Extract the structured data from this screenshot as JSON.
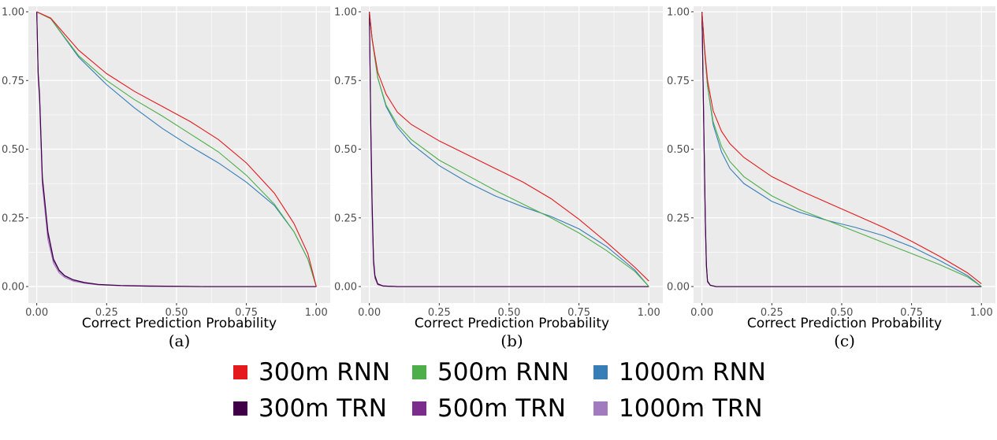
{
  "chart_data": [
    {
      "type": "line",
      "caption": "(a)",
      "xlabel": "Correct Prediction Probability",
      "ylabel": "",
      "xlim": [
        -0.03,
        1.05
      ],
      "ylim": [
        -0.06,
        1.02
      ],
      "xticks": [
        "0.00",
        "0.25",
        "0.50",
        "0.75",
        "1.00"
      ],
      "yticks": [
        "0.00",
        "0.25",
        "0.50",
        "0.75",
        "1.00"
      ],
      "grid": true,
      "series": [
        {
          "name": "300m RNN",
          "x": [
            0,
            0.05,
            0.15,
            0.25,
            0.35,
            0.45,
            0.55,
            0.65,
            0.75,
            0.85,
            0.92,
            0.97,
            1.0
          ],
          "y": [
            1.0,
            0.977,
            0.86,
            0.775,
            0.71,
            0.655,
            0.6,
            0.535,
            0.45,
            0.34,
            0.23,
            0.12,
            0.0
          ]
        },
        {
          "name": "500m RNN",
          "x": [
            0,
            0.05,
            0.15,
            0.25,
            0.35,
            0.45,
            0.55,
            0.65,
            0.75,
            0.85,
            0.92,
            0.97,
            1.0
          ],
          "y": [
            1.0,
            0.975,
            0.84,
            0.75,
            0.68,
            0.62,
            0.555,
            0.49,
            0.405,
            0.3,
            0.2,
            0.1,
            0.0
          ]
        },
        {
          "name": "1000m RNN",
          "x": [
            0,
            0.05,
            0.15,
            0.25,
            0.35,
            0.45,
            0.55,
            0.65,
            0.75,
            0.85,
            0.92,
            0.97,
            1.0
          ],
          "y": [
            1.0,
            0.975,
            0.835,
            0.735,
            0.65,
            0.575,
            0.51,
            0.45,
            0.38,
            0.295,
            0.2,
            0.1,
            0.0
          ]
        },
        {
          "name": "300m TRN",
          "x": [
            0,
            0.005,
            0.01,
            0.02,
            0.04,
            0.06,
            0.08,
            0.1,
            0.13,
            0.17,
            0.22,
            0.3,
            0.4,
            0.6,
            1.0
          ],
          "y": [
            1.0,
            0.78,
            0.7,
            0.4,
            0.2,
            0.1,
            0.06,
            0.04,
            0.025,
            0.015,
            0.008,
            0.004,
            0.002,
            0.0,
            0.0
          ]
        },
        {
          "name": "500m TRN",
          "x": [
            0,
            0.005,
            0.01,
            0.02,
            0.04,
            0.06,
            0.08,
            0.1,
            0.13,
            0.17,
            0.22,
            0.3,
            0.4,
            0.6,
            1.0
          ],
          "y": [
            1.0,
            0.77,
            0.69,
            0.39,
            0.19,
            0.095,
            0.057,
            0.038,
            0.024,
            0.014,
            0.007,
            0.003,
            0.001,
            0.0,
            0.0
          ]
        },
        {
          "name": "1000m TRN",
          "x": [
            0,
            0.005,
            0.01,
            0.02,
            0.04,
            0.06,
            0.08,
            0.1,
            0.13,
            0.17,
            0.22,
            0.3,
            0.4,
            0.6,
            1.0
          ],
          "y": [
            1.0,
            0.76,
            0.68,
            0.37,
            0.17,
            0.085,
            0.05,
            0.033,
            0.02,
            0.012,
            0.006,
            0.003,
            0.001,
            0.0,
            0.0
          ]
        }
      ]
    },
    {
      "type": "line",
      "caption": "(b)",
      "xlabel": "Correct Prediction Probability",
      "ylabel": "",
      "xlim": [
        -0.03,
        1.05
      ],
      "ylim": [
        -0.06,
        1.02
      ],
      "xticks": [
        "0.00",
        "0.25",
        "0.50",
        "0.75",
        "1.00"
      ],
      "yticks": [
        "0.00",
        "0.25",
        "0.50",
        "0.75",
        "1.00"
      ],
      "grid": true,
      "series": [
        {
          "name": "300m RNN",
          "x": [
            0,
            0.01,
            0.03,
            0.06,
            0.1,
            0.15,
            0.25,
            0.35,
            0.45,
            0.55,
            0.65,
            0.75,
            0.85,
            0.95,
            1.0
          ],
          "y": [
            1.0,
            0.9,
            0.78,
            0.7,
            0.635,
            0.59,
            0.53,
            0.48,
            0.43,
            0.38,
            0.32,
            0.245,
            0.16,
            0.07,
            0.02
          ]
        },
        {
          "name": "500m RNN",
          "x": [
            0,
            0.01,
            0.03,
            0.06,
            0.1,
            0.15,
            0.25,
            0.35,
            0.45,
            0.55,
            0.65,
            0.75,
            0.85,
            0.95,
            1.0
          ],
          "y": [
            1.0,
            0.9,
            0.76,
            0.66,
            0.59,
            0.535,
            0.46,
            0.405,
            0.35,
            0.3,
            0.25,
            0.195,
            0.13,
            0.055,
            0.0
          ]
        },
        {
          "name": "1000m RNN",
          "x": [
            0,
            0.01,
            0.03,
            0.06,
            0.1,
            0.15,
            0.25,
            0.35,
            0.45,
            0.55,
            0.65,
            0.75,
            0.85,
            0.95,
            1.0
          ],
          "y": [
            1.0,
            0.9,
            0.76,
            0.655,
            0.58,
            0.52,
            0.44,
            0.38,
            0.33,
            0.29,
            0.255,
            0.21,
            0.145,
            0.06,
            0.0
          ]
        },
        {
          "name": "300m TRN",
          "x": [
            0,
            0.005,
            0.01,
            0.015,
            0.02,
            0.03,
            0.05,
            0.1,
            1.0
          ],
          "y": [
            1.0,
            0.6,
            0.3,
            0.1,
            0.04,
            0.01,
            0.002,
            0.0,
            0.0
          ]
        },
        {
          "name": "500m TRN",
          "x": [
            0,
            0.005,
            0.01,
            0.015,
            0.02,
            0.03,
            0.05,
            0.1,
            1.0
          ],
          "y": [
            1.0,
            0.58,
            0.28,
            0.09,
            0.035,
            0.008,
            0.002,
            0.0,
            0.0
          ]
        },
        {
          "name": "1000m TRN",
          "x": [
            0,
            0.005,
            0.01,
            0.015,
            0.02,
            0.03,
            0.05,
            0.1,
            1.0
          ],
          "y": [
            1.0,
            0.55,
            0.26,
            0.08,
            0.03,
            0.007,
            0.001,
            0.0,
            0.0
          ]
        }
      ]
    },
    {
      "type": "line",
      "caption": "(c)",
      "xlabel": "Correct Prediction Probability",
      "ylabel": "",
      "xlim": [
        -0.03,
        1.05
      ],
      "ylim": [
        -0.06,
        1.02
      ],
      "xticks": [
        "0.00",
        "0.25",
        "0.50",
        "0.75",
        "1.00"
      ],
      "yticks": [
        "0.00",
        "0.25",
        "0.50",
        "0.75",
        "1.00"
      ],
      "grid": true,
      "series": [
        {
          "name": "300m RNN",
          "x": [
            0,
            0.01,
            0.02,
            0.04,
            0.07,
            0.1,
            0.15,
            0.25,
            0.35,
            0.45,
            0.55,
            0.65,
            0.75,
            0.85,
            0.95,
            1.0
          ],
          "y": [
            1.0,
            0.86,
            0.75,
            0.64,
            0.565,
            0.52,
            0.47,
            0.4,
            0.35,
            0.305,
            0.26,
            0.215,
            0.165,
            0.11,
            0.05,
            0.01
          ]
        },
        {
          "name": "500m RNN",
          "x": [
            0,
            0.01,
            0.02,
            0.04,
            0.07,
            0.1,
            0.15,
            0.25,
            0.35,
            0.45,
            0.55,
            0.65,
            0.75,
            0.85,
            0.95,
            1.0
          ],
          "y": [
            1.0,
            0.85,
            0.73,
            0.6,
            0.51,
            0.455,
            0.4,
            0.33,
            0.28,
            0.24,
            0.2,
            0.16,
            0.12,
            0.08,
            0.035,
            0.0
          ]
        },
        {
          "name": "1000m RNN",
          "x": [
            0,
            0.01,
            0.02,
            0.04,
            0.07,
            0.1,
            0.15,
            0.25,
            0.35,
            0.45,
            0.55,
            0.65,
            0.75,
            0.85,
            0.95,
            1.0
          ],
          "y": [
            1.0,
            0.85,
            0.73,
            0.59,
            0.49,
            0.43,
            0.375,
            0.31,
            0.27,
            0.24,
            0.215,
            0.185,
            0.145,
            0.095,
            0.04,
            0.0
          ]
        },
        {
          "name": "300m TRN",
          "x": [
            0,
            0.004,
            0.008,
            0.012,
            0.016,
            0.02,
            0.03,
            0.05,
            1.0
          ],
          "y": [
            1.0,
            0.75,
            0.5,
            0.25,
            0.08,
            0.02,
            0.005,
            0.0,
            0.0
          ]
        },
        {
          "name": "500m TRN",
          "x": [
            0,
            0.004,
            0.008,
            0.012,
            0.016,
            0.02,
            0.03,
            0.05,
            1.0
          ],
          "y": [
            1.0,
            0.74,
            0.49,
            0.24,
            0.075,
            0.018,
            0.004,
            0.0,
            0.0
          ]
        },
        {
          "name": "1000m TRN",
          "x": [
            0,
            0.004,
            0.008,
            0.012,
            0.016,
            0.02,
            0.03,
            0.05,
            1.0
          ],
          "y": [
            1.0,
            0.73,
            0.48,
            0.23,
            0.07,
            0.016,
            0.004,
            0.0,
            0.0
          ]
        }
      ]
    }
  ],
  "legend": {
    "placement": "bottom",
    "rows": [
      [
        {
          "label": "300m RNN",
          "color": "#e41a1c"
        },
        {
          "label": "500m RNN",
          "color": "#4daf4a"
        },
        {
          "label": "1000m RNN",
          "color": "#377eb8"
        }
      ],
      [
        {
          "label": "300m TRN",
          "color": "#3f0047"
        },
        {
          "label": "500m TRN",
          "color": "#7b2d8e"
        },
        {
          "label": "1000m TRN",
          "color": "#a17bbd"
        }
      ]
    ]
  }
}
